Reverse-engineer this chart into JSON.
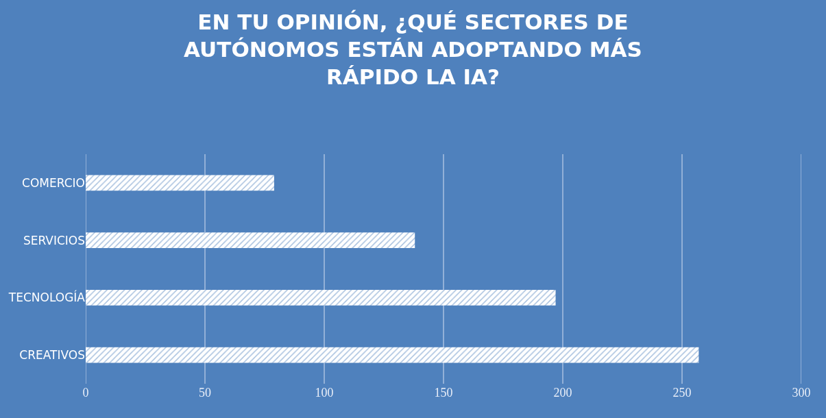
{
  "chart_data": {
    "type": "bar",
    "orientation": "horizontal",
    "title": "EN TU OPINIÓN, ¿QUÉ SECTORES DE\nAUTÓNOMOS ESTÁN ADOPTANDO MÁS\nRÁPIDO LA IA?",
    "categories": [
      "COMERCIO",
      "SERVICIOS",
      "TECNOLOGÍA",
      "CREATIVOS"
    ],
    "values": [
      79,
      138,
      197,
      257
    ],
    "color": "#ffffff",
    "xlim": [
      0,
      300
    ],
    "xticks": [
      0,
      50,
      100,
      150,
      200,
      250,
      300
    ],
    "grid": "x"
  }
}
